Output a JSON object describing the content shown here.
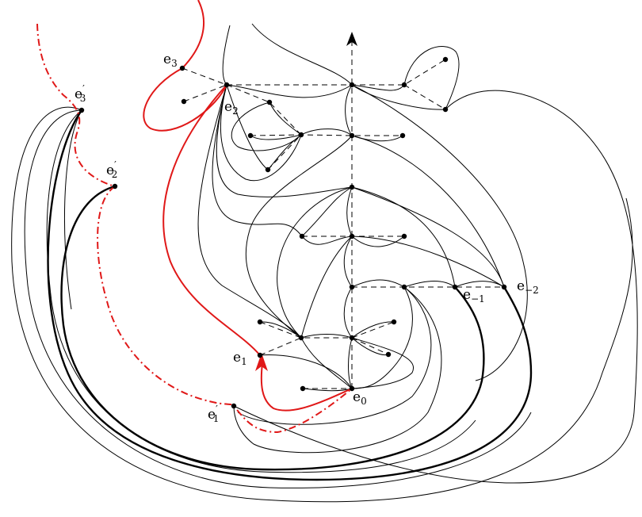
{
  "diagram": {
    "labels": {
      "e3": {
        "base": "e",
        "sub": "3"
      },
      "e2": {
        "base": "e",
        "sub": "2"
      },
      "e1": {
        "base": "e",
        "sub": "1"
      },
      "e0": {
        "base": "e",
        "sub": "0"
      },
      "em1": {
        "base": "e",
        "sub": "−1"
      },
      "em2": {
        "base": "e",
        "sub": "−2"
      },
      "e3p": {
        "base": "e",
        "prime": "′",
        "sub": "3"
      },
      "e2p": {
        "base": "e",
        "prime": "′",
        "sub": "2"
      },
      "e1p": {
        "base": "e",
        "prime": "′",
        "sub": "1"
      }
    },
    "colors": {
      "highlight": "#e01818",
      "line": "#000000"
    }
  }
}
